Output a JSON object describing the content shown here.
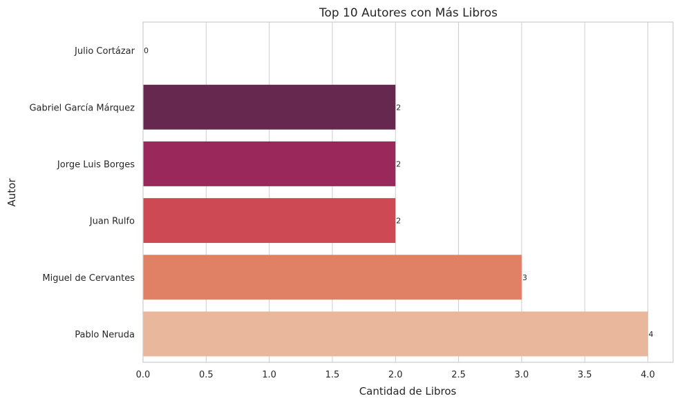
{
  "chart_data": {
    "type": "bar",
    "orientation": "horizontal",
    "title": "Top 10 Autores con Más Libros",
    "xlabel": "Cantidad de Libros",
    "ylabel": "Autor",
    "categories": [
      "Julio Cortázar",
      "Gabriel García Márquez",
      "Jorge Luis Borges",
      "Juan Rulfo",
      "Miguel de Cervantes",
      "Pablo Neruda"
    ],
    "values": [
      0,
      2,
      2,
      2,
      3,
      4
    ],
    "data_labels": [
      "0",
      "2",
      "2",
      "2",
      "3",
      "4"
    ],
    "colors": [
      "#701f57",
      "#66284f",
      "#9b285a",
      "#cd4a55",
      "#e08166",
      "#e8b79c"
    ],
    "xlim": [
      0,
      4.2
    ],
    "xticks": [
      0.0,
      0.5,
      1.0,
      1.5,
      2.0,
      2.5,
      3.0,
      3.5,
      4.0
    ],
    "xtick_labels": [
      "0.0",
      "0.5",
      "1.0",
      "1.5",
      "2.0",
      "2.5",
      "3.0",
      "3.5",
      "4.0"
    ],
    "grid": "vertical"
  }
}
